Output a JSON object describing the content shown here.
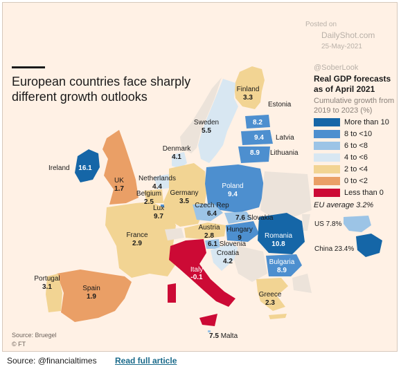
{
  "watermark": {
    "posted_on": "Posted on",
    "site": "DailyShot.com",
    "date": "25-May-2021",
    "handle": "@SoberLook"
  },
  "headline": [
    "European countries face sharply",
    "different growth outlooks"
  ],
  "legend": {
    "title": [
      "Real GDP forecasts",
      "as of April 2021"
    ],
    "subtitle": [
      "Cumulative growth from",
      "2019 to 2023 (%)"
    ],
    "items": [
      {
        "label": "More than 10",
        "color": "#1566a7"
      },
      {
        "label": "8 to <10",
        "color": "#4d8fcf"
      },
      {
        "label": "6 to <8",
        "color": "#9cc4e6"
      },
      {
        "label": "4 to <6",
        "color": "#d8e7f2"
      },
      {
        "label": "2 to <4",
        "color": "#f2d493"
      },
      {
        "label": "0 to <2",
        "color": "#ea9f66"
      },
      {
        "label": "Less than 0",
        "color": "#cc0a35"
      }
    ],
    "eu_average": "EU average 3.2%",
    "us": "US 7.8%",
    "china": "China 23.4%"
  },
  "countries": [
    {
      "name": "Finland",
      "value": "3.3",
      "color": "#f2d493"
    },
    {
      "name": "Sweden",
      "value": "5.5",
      "color": "#d8e7f2"
    },
    {
      "name": "Estonia",
      "value": "8.2",
      "color": "#4d8fcf"
    },
    {
      "name": "Latvia",
      "value": "9.4",
      "color": "#4d8fcf"
    },
    {
      "name": "Lithuania",
      "value": "8.9",
      "color": "#4d8fcf"
    },
    {
      "name": "Denmark",
      "value": "4.1",
      "color": "#d8e7f2"
    },
    {
      "name": "Ireland",
      "value": "16.1",
      "color": "#1566a7"
    },
    {
      "name": "UK",
      "value": "1.7",
      "color": "#ea9f66"
    },
    {
      "name": "Netherlands",
      "value": "4.4",
      "color": "#d8e7f2"
    },
    {
      "name": "Belgium",
      "value": "2.5",
      "color": "#f2d493"
    },
    {
      "name": "Lux",
      "value": "9.7",
      "color": "#4d8fcf"
    },
    {
      "name": "Germany",
      "value": "3.5",
      "color": "#f2d493"
    },
    {
      "name": "Poland",
      "value": "9.4",
      "color": "#4d8fcf"
    },
    {
      "name": "Czech Rep",
      "value": "6.4",
      "color": "#9cc4e6"
    },
    {
      "name": "Slovakia",
      "value": "7.6",
      "color": "#9cc4e6"
    },
    {
      "name": "France",
      "value": "2.9",
      "color": "#f2d493"
    },
    {
      "name": "Austria",
      "value": "2.8",
      "color": "#f2d493"
    },
    {
      "name": "Hungary",
      "value": "9",
      "color": "#4d8fcf"
    },
    {
      "name": "Romania",
      "value": "10.8",
      "color": "#1566a7"
    },
    {
      "name": "Slovenia",
      "value": "6.1",
      "color": "#9cc4e6"
    },
    {
      "name": "Croatia",
      "value": "4.2",
      "color": "#d8e7f2"
    },
    {
      "name": "Bulgaria",
      "value": "8.9",
      "color": "#4d8fcf"
    },
    {
      "name": "Portugal",
      "value": "3.1",
      "color": "#f2d493"
    },
    {
      "name": "Spain",
      "value": "1.9",
      "color": "#ea9f66"
    },
    {
      "name": "Italy",
      "value": "-0.1",
      "color": "#cc0a35"
    },
    {
      "name": "Greece",
      "value": "2.3",
      "color": "#f2d493"
    },
    {
      "name": "Malta",
      "value": "7.5",
      "color": "#9cc4e6"
    }
  ],
  "source": "Source: Bruegel",
  "copyright": "© FT",
  "footer": {
    "source": "Source: @financialtimes",
    "link": "Read full article"
  }
}
